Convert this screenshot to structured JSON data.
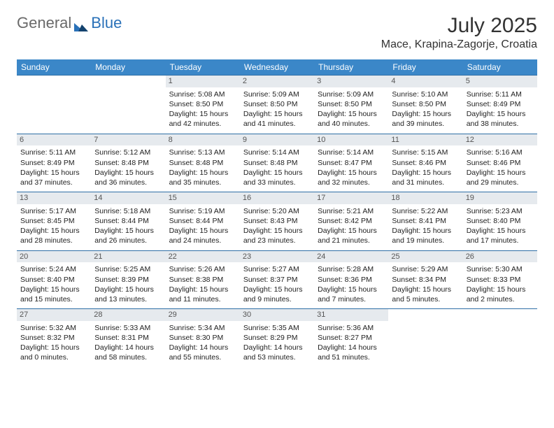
{
  "logo": {
    "text1": "General",
    "text2": "Blue"
  },
  "title": "July 2025",
  "location": "Mace, Krapina-Zagorje, Croatia",
  "colors": {
    "header_bg": "#3b87c8",
    "header_fg": "#ffffff",
    "rule": "#2f6fa6",
    "daynum_bg": "#e6eaee",
    "logo_blue": "#2a71b8"
  },
  "dayHeaders": [
    "Sunday",
    "Monday",
    "Tuesday",
    "Wednesday",
    "Thursday",
    "Friday",
    "Saturday"
  ],
  "weeks": [
    [
      {
        "n": "",
        "empty": true
      },
      {
        "n": "",
        "empty": true
      },
      {
        "n": "1",
        "sr": "Sunrise: 5:08 AM",
        "ss": "Sunset: 8:50 PM",
        "dl": "Daylight: 15 hours and 42 minutes."
      },
      {
        "n": "2",
        "sr": "Sunrise: 5:09 AM",
        "ss": "Sunset: 8:50 PM",
        "dl": "Daylight: 15 hours and 41 minutes."
      },
      {
        "n": "3",
        "sr": "Sunrise: 5:09 AM",
        "ss": "Sunset: 8:50 PM",
        "dl": "Daylight: 15 hours and 40 minutes."
      },
      {
        "n": "4",
        "sr": "Sunrise: 5:10 AM",
        "ss": "Sunset: 8:50 PM",
        "dl": "Daylight: 15 hours and 39 minutes."
      },
      {
        "n": "5",
        "sr": "Sunrise: 5:11 AM",
        "ss": "Sunset: 8:49 PM",
        "dl": "Daylight: 15 hours and 38 minutes."
      }
    ],
    [
      {
        "n": "6",
        "sr": "Sunrise: 5:11 AM",
        "ss": "Sunset: 8:49 PM",
        "dl": "Daylight: 15 hours and 37 minutes."
      },
      {
        "n": "7",
        "sr": "Sunrise: 5:12 AM",
        "ss": "Sunset: 8:48 PM",
        "dl": "Daylight: 15 hours and 36 minutes."
      },
      {
        "n": "8",
        "sr": "Sunrise: 5:13 AM",
        "ss": "Sunset: 8:48 PM",
        "dl": "Daylight: 15 hours and 35 minutes."
      },
      {
        "n": "9",
        "sr": "Sunrise: 5:14 AM",
        "ss": "Sunset: 8:48 PM",
        "dl": "Daylight: 15 hours and 33 minutes."
      },
      {
        "n": "10",
        "sr": "Sunrise: 5:14 AM",
        "ss": "Sunset: 8:47 PM",
        "dl": "Daylight: 15 hours and 32 minutes."
      },
      {
        "n": "11",
        "sr": "Sunrise: 5:15 AM",
        "ss": "Sunset: 8:46 PM",
        "dl": "Daylight: 15 hours and 31 minutes."
      },
      {
        "n": "12",
        "sr": "Sunrise: 5:16 AM",
        "ss": "Sunset: 8:46 PM",
        "dl": "Daylight: 15 hours and 29 minutes."
      }
    ],
    [
      {
        "n": "13",
        "sr": "Sunrise: 5:17 AM",
        "ss": "Sunset: 8:45 PM",
        "dl": "Daylight: 15 hours and 28 minutes."
      },
      {
        "n": "14",
        "sr": "Sunrise: 5:18 AM",
        "ss": "Sunset: 8:44 PM",
        "dl": "Daylight: 15 hours and 26 minutes."
      },
      {
        "n": "15",
        "sr": "Sunrise: 5:19 AM",
        "ss": "Sunset: 8:44 PM",
        "dl": "Daylight: 15 hours and 24 minutes."
      },
      {
        "n": "16",
        "sr": "Sunrise: 5:20 AM",
        "ss": "Sunset: 8:43 PM",
        "dl": "Daylight: 15 hours and 23 minutes."
      },
      {
        "n": "17",
        "sr": "Sunrise: 5:21 AM",
        "ss": "Sunset: 8:42 PM",
        "dl": "Daylight: 15 hours and 21 minutes."
      },
      {
        "n": "18",
        "sr": "Sunrise: 5:22 AM",
        "ss": "Sunset: 8:41 PM",
        "dl": "Daylight: 15 hours and 19 minutes."
      },
      {
        "n": "19",
        "sr": "Sunrise: 5:23 AM",
        "ss": "Sunset: 8:40 PM",
        "dl": "Daylight: 15 hours and 17 minutes."
      }
    ],
    [
      {
        "n": "20",
        "sr": "Sunrise: 5:24 AM",
        "ss": "Sunset: 8:40 PM",
        "dl": "Daylight: 15 hours and 15 minutes."
      },
      {
        "n": "21",
        "sr": "Sunrise: 5:25 AM",
        "ss": "Sunset: 8:39 PM",
        "dl": "Daylight: 15 hours and 13 minutes."
      },
      {
        "n": "22",
        "sr": "Sunrise: 5:26 AM",
        "ss": "Sunset: 8:38 PM",
        "dl": "Daylight: 15 hours and 11 minutes."
      },
      {
        "n": "23",
        "sr": "Sunrise: 5:27 AM",
        "ss": "Sunset: 8:37 PM",
        "dl": "Daylight: 15 hours and 9 minutes."
      },
      {
        "n": "24",
        "sr": "Sunrise: 5:28 AM",
        "ss": "Sunset: 8:36 PM",
        "dl": "Daylight: 15 hours and 7 minutes."
      },
      {
        "n": "25",
        "sr": "Sunrise: 5:29 AM",
        "ss": "Sunset: 8:34 PM",
        "dl": "Daylight: 15 hours and 5 minutes."
      },
      {
        "n": "26",
        "sr": "Sunrise: 5:30 AM",
        "ss": "Sunset: 8:33 PM",
        "dl": "Daylight: 15 hours and 2 minutes."
      }
    ],
    [
      {
        "n": "27",
        "sr": "Sunrise: 5:32 AM",
        "ss": "Sunset: 8:32 PM",
        "dl": "Daylight: 15 hours and 0 minutes."
      },
      {
        "n": "28",
        "sr": "Sunrise: 5:33 AM",
        "ss": "Sunset: 8:31 PM",
        "dl": "Daylight: 14 hours and 58 minutes."
      },
      {
        "n": "29",
        "sr": "Sunrise: 5:34 AM",
        "ss": "Sunset: 8:30 PM",
        "dl": "Daylight: 14 hours and 55 minutes."
      },
      {
        "n": "30",
        "sr": "Sunrise: 5:35 AM",
        "ss": "Sunset: 8:29 PM",
        "dl": "Daylight: 14 hours and 53 minutes."
      },
      {
        "n": "31",
        "sr": "Sunrise: 5:36 AM",
        "ss": "Sunset: 8:27 PM",
        "dl": "Daylight: 14 hours and 51 minutes."
      },
      {
        "n": "",
        "empty": true
      },
      {
        "n": "",
        "empty": true
      }
    ]
  ]
}
